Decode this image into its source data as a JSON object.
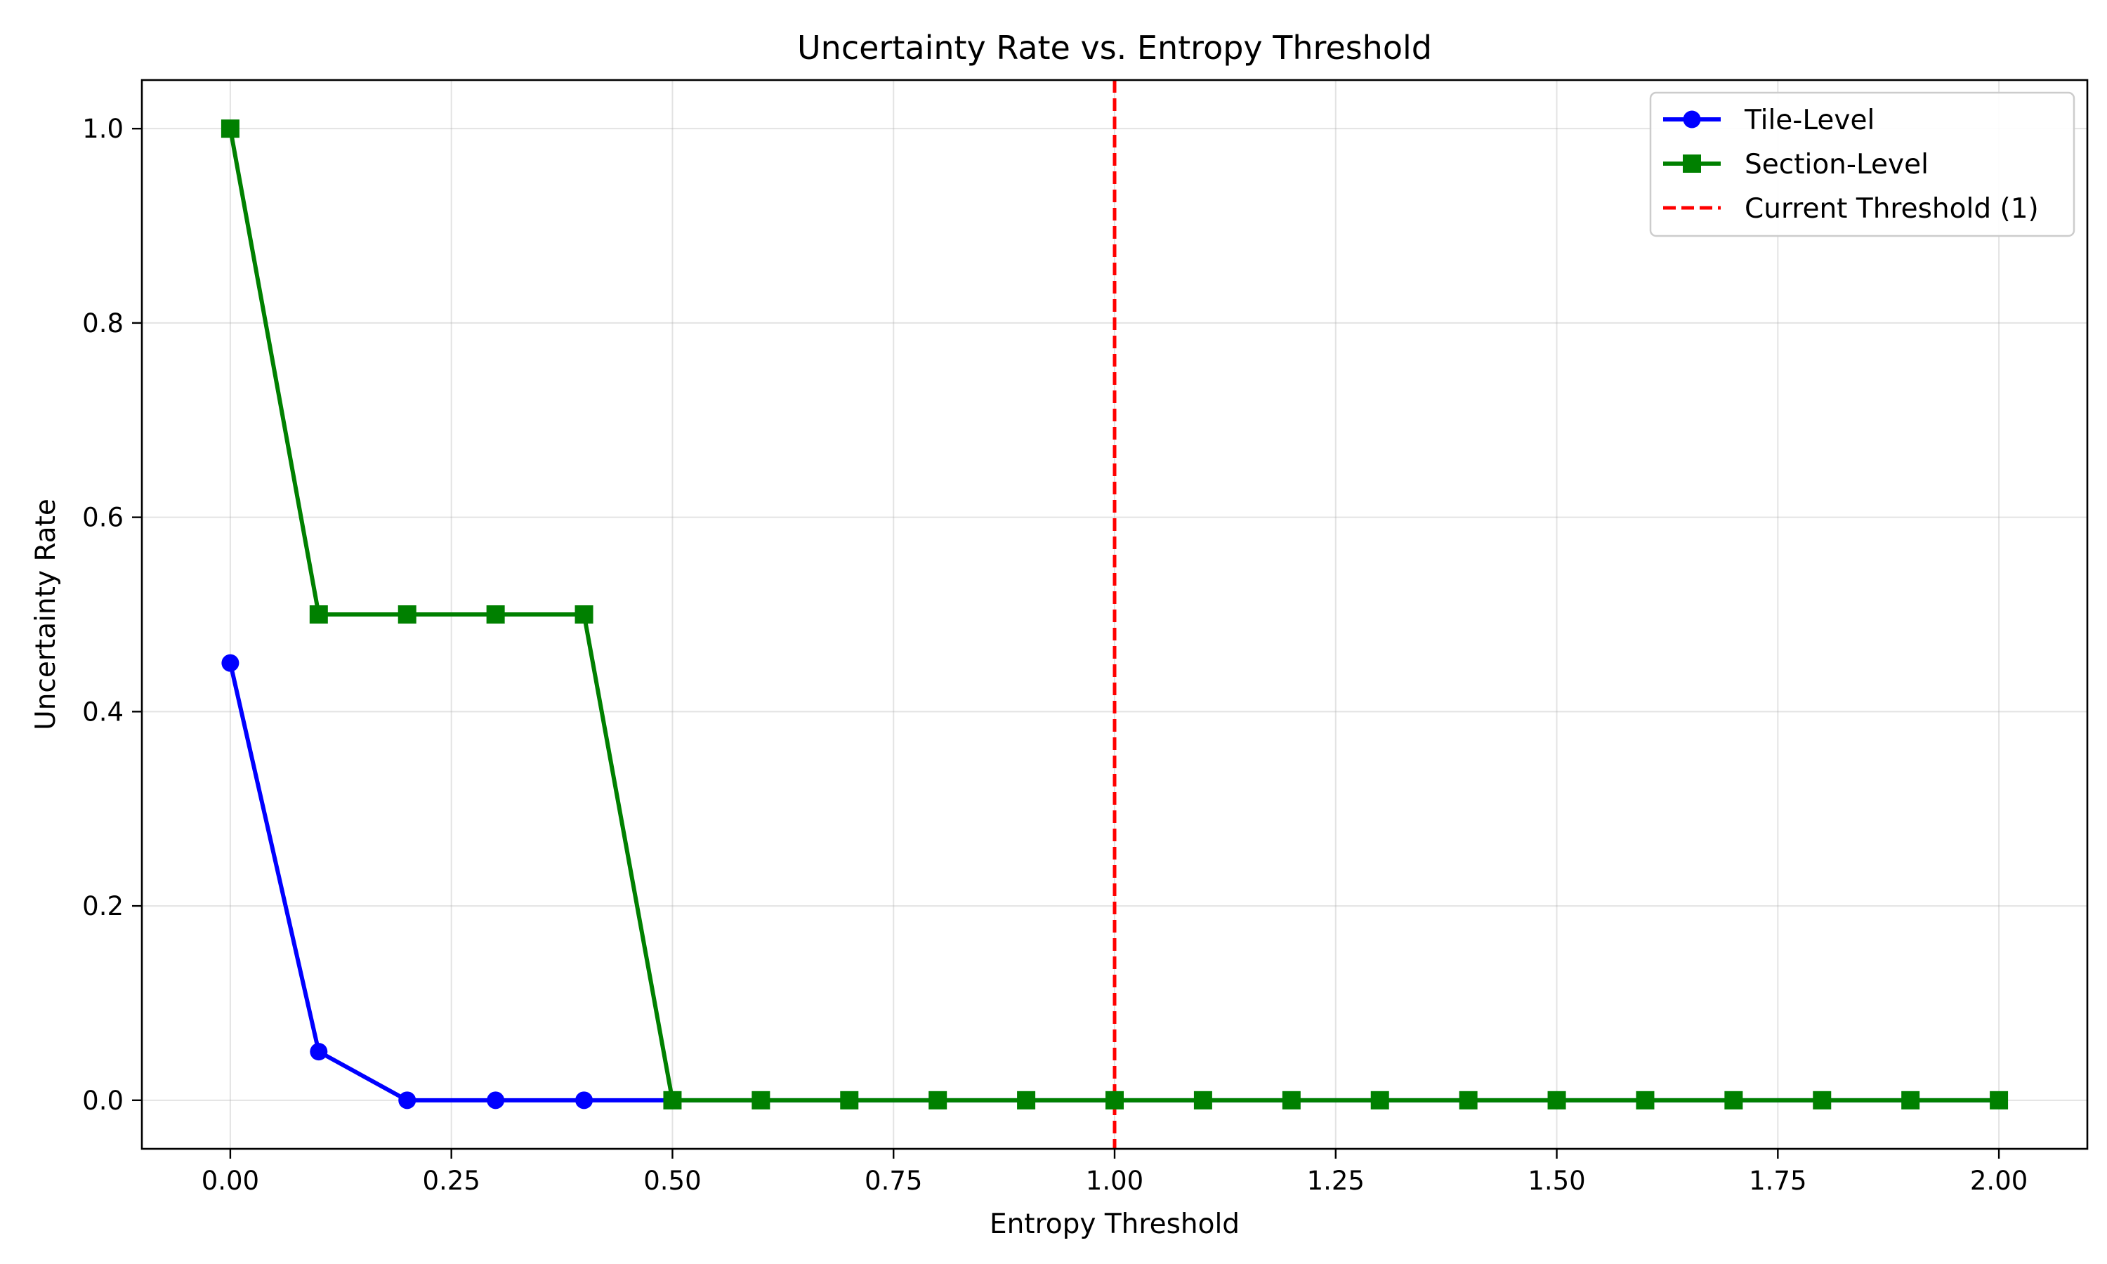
{
  "chart_data": {
    "type": "line",
    "title": "Uncertainty Rate vs. Entropy Threshold",
    "xlabel": "Entropy Threshold",
    "ylabel": "Uncertainty Rate",
    "xlim": [
      -0.1,
      2.1
    ],
    "ylim": [
      -0.05,
      1.05
    ],
    "xticks": [
      0.0,
      0.25,
      0.5,
      0.75,
      1.0,
      1.25,
      1.5,
      1.75,
      2.0
    ],
    "xtick_labels": [
      "0.00",
      "0.25",
      "0.50",
      "0.75",
      "1.00",
      "1.25",
      "1.50",
      "1.75",
      "2.00"
    ],
    "yticks": [
      0.0,
      0.2,
      0.4,
      0.6,
      0.8,
      1.0
    ],
    "ytick_labels": [
      "0.0",
      "0.2",
      "0.4",
      "0.6",
      "0.8",
      "1.0"
    ],
    "grid": true,
    "legend_position": "top-right",
    "x": [
      0.0,
      0.1,
      0.2,
      0.3,
      0.4,
      0.5,
      0.6,
      0.7,
      0.8,
      0.9,
      1.0,
      1.1,
      1.2,
      1.3,
      1.4,
      1.5,
      1.6,
      1.7,
      1.8,
      1.9,
      2.0
    ],
    "series": [
      {
        "name": "Tile-Level",
        "color": "#0000ff",
        "marker": "circle",
        "values": [
          0.45,
          0.05,
          0.0,
          0.0,
          0.0,
          0.0,
          0.0,
          0.0,
          0.0,
          0.0,
          0.0,
          0.0,
          0.0,
          0.0,
          0.0,
          0.0,
          0.0,
          0.0,
          0.0,
          0.0,
          0.0
        ]
      },
      {
        "name": "Section-Level",
        "color": "#008000",
        "marker": "square",
        "values": [
          1.0,
          0.5,
          0.5,
          0.5,
          0.5,
          0.0,
          0.0,
          0.0,
          0.0,
          0.0,
          0.0,
          0.0,
          0.0,
          0.0,
          0.0,
          0.0,
          0.0,
          0.0,
          0.0,
          0.0,
          0.0
        ]
      }
    ],
    "reference_lines": [
      {
        "name": "Current Threshold (1)",
        "x": 1.0,
        "color": "#ff0000",
        "style": "dashed"
      }
    ]
  }
}
